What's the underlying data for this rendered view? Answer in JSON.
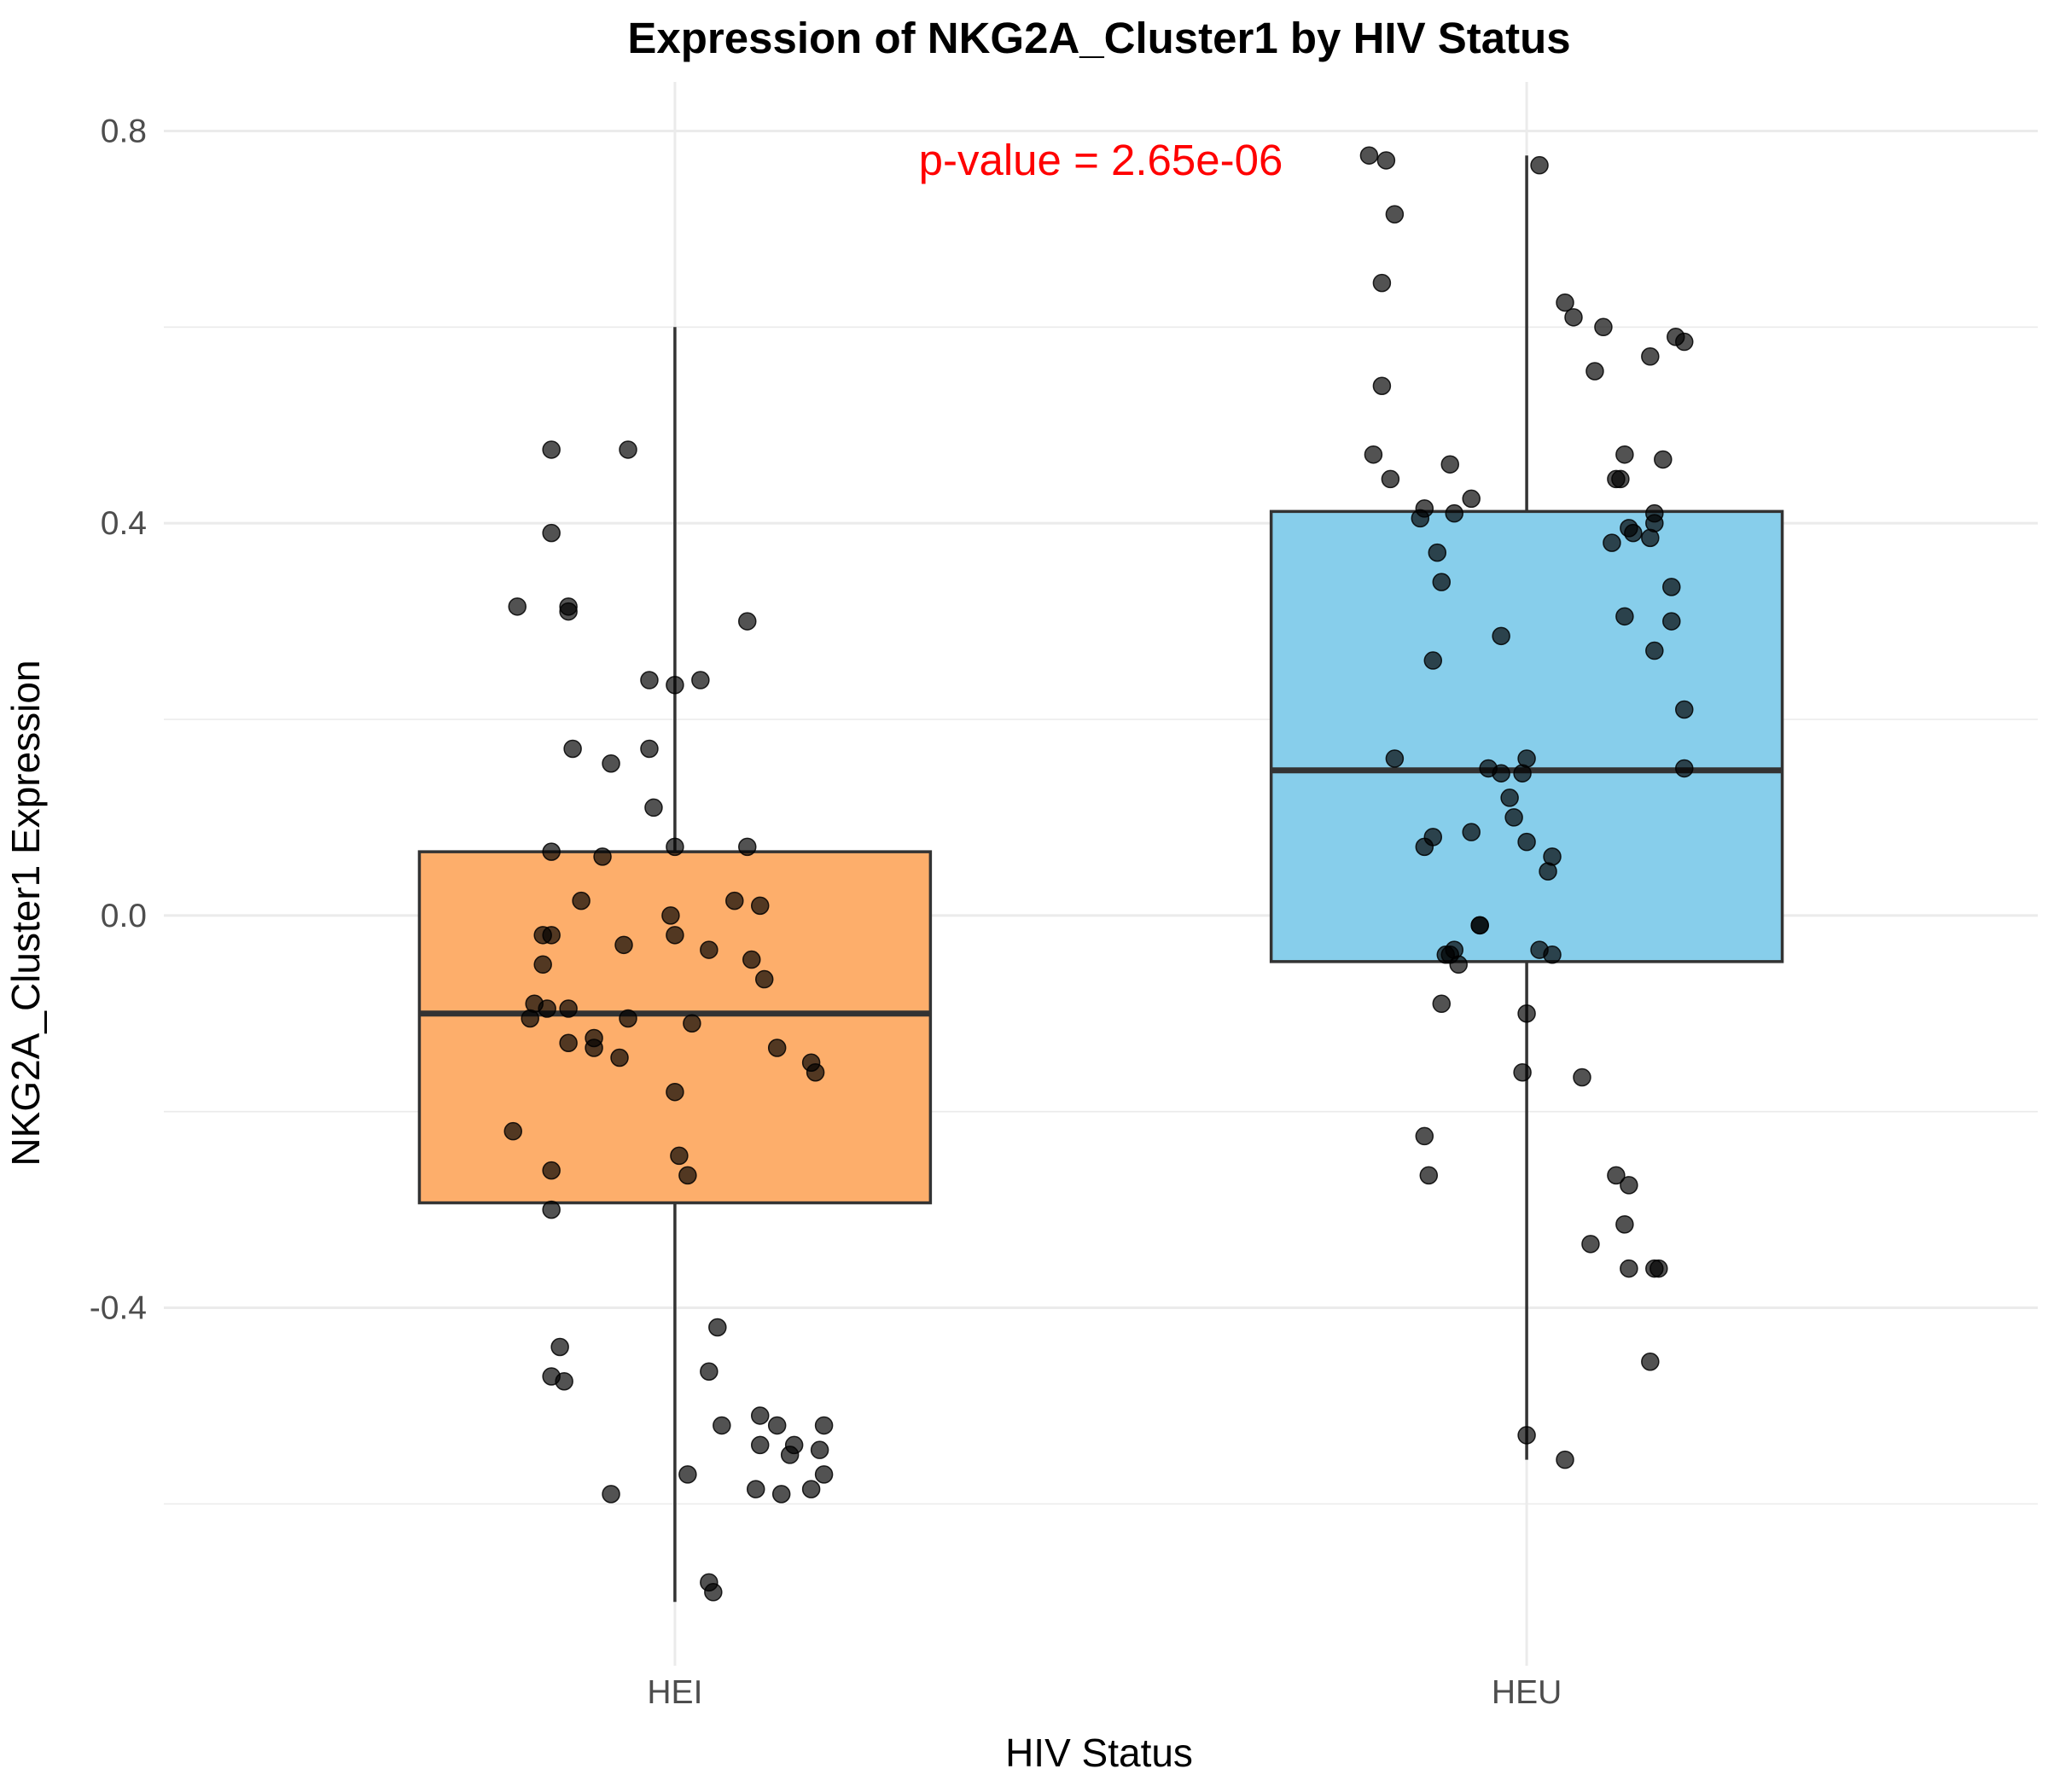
{
  "chart_data": {
    "type": "box",
    "title": "Expression of NKG2A_Cluster1 by HIV Status",
    "xlabel": "HIV Status",
    "ylabel": "NKG2A_Cluster1 Expression",
    "categories": [
      "HEI",
      "HEU"
    ],
    "ylim": [
      -0.765,
      0.85
    ],
    "yticks": [
      0.8,
      0.4,
      0.0,
      -0.4
    ],
    "ytick_labels": [
      "0.8",
      "0.4",
      "0.0",
      "-0.4"
    ],
    "grid": true,
    "legend": "none",
    "annotation": {
      "text": "p-value = 2.65e-06",
      "color": "#ff0000",
      "x": 1.5,
      "y": 0.77
    },
    "boxes": [
      {
        "category": "HEI",
        "color": "#fdae6b",
        "whisker_low": -0.7,
        "q1": -0.293,
        "median": -0.1,
        "q3": 0.065,
        "whisker_high": 0.6
      },
      {
        "category": "HEU",
        "color": "#87ceeb",
        "whisker_low": -0.555,
        "q1": -0.047,
        "median": 0.148,
        "q3": 0.412,
        "whisker_high": 0.775
      }
    ],
    "points": [
      {
        "category": "HEI",
        "jitter": [
          -0.145,
          -0.145,
          -0.125,
          -0.185,
          -0.125,
          -0.12,
          -0.145,
          -0.03,
          -0.145,
          0.085,
          -0.155,
          -0.155,
          -0.17,
          -0.165,
          -0.15,
          -0.085,
          -0.11,
          -0.06,
          -0.095,
          -0.125,
          -0.125,
          -0.095,
          -0.065,
          -0.055,
          -0.03,
          -0.025,
          0.0,
          -0.005,
          0.0,
          0.02,
          0.015,
          0.04,
          0.085,
          0.1,
          0.09,
          0.105,
          0.07,
          0.12,
          0.16,
          0.165,
          -0.19,
          -0.145,
          0.0,
          0.005,
          -0.075,
          -0.055,
          0.0,
          0.03,
          -0.145,
          -0.135,
          0.1,
          0.12,
          0.14,
          0.04,
          0.015,
          0.055,
          0.175,
          0.135,
          0.16,
          0.175,
          -0.13,
          -0.145,
          0.1,
          0.125,
          0.095,
          0.05,
          0.17,
          -0.075,
          0.04,
          0.045
        ],
        "y": [
          0.475,
          0.39,
          0.315,
          0.315,
          0.31,
          0.17,
          0.065,
          0.17,
          -0.02,
          0.3,
          -0.02,
          -0.05,
          -0.105,
          -0.09,
          -0.095,
          0.06,
          0.015,
          -0.03,
          -0.135,
          -0.13,
          -0.095,
          -0.125,
          -0.145,
          -0.105,
          0.24,
          0.11,
          0.07,
          0.0,
          -0.02,
          -0.11,
          -0.265,
          -0.035,
          0.07,
          0.01,
          -0.045,
          -0.065,
          0.015,
          -0.135,
          -0.15,
          -0.16,
          -0.22,
          -0.26,
          -0.18,
          -0.245,
          0.155,
          0.475,
          0.235,
          0.24,
          -0.3,
          -0.44,
          -0.54,
          -0.52,
          -0.54,
          -0.465,
          -0.57,
          -0.52,
          -0.52,
          -0.55,
          -0.585,
          -0.57,
          -0.475,
          -0.47,
          -0.51,
          -0.59,
          -0.585,
          -0.42,
          -0.545,
          -0.59,
          -0.68,
          -0.69
        ]
      },
      {
        "category": "HEU",
        "jitter": [
          -0.165,
          -0.17,
          -0.17,
          -0.18,
          -0.16,
          -0.12,
          -0.125,
          -0.105,
          -0.09,
          -0.065,
          -0.085,
          -0.1,
          -0.03,
          -0.11,
          -0.155,
          -0.11,
          -0.12,
          -0.09,
          -0.055,
          -0.065,
          -0.03,
          -0.045,
          -0.02,
          -0.015,
          0.0,
          -0.005,
          0.0,
          0.03,
          0.025,
          0.015,
          0.03,
          0.015,
          0.045,
          0.055,
          0.08,
          0.09,
          0.105,
          0.115,
          0.12,
          0.1,
          0.125,
          0.115,
          0.15,
          0.17,
          0.185,
          0.175,
          0.145,
          0.16,
          0.11,
          0.15,
          0.15,
          0.145,
          0.17,
          0.185,
          0.185,
          -0.185,
          -0.155,
          -0.115,
          -0.12,
          -0.1,
          -0.095,
          -0.085,
          -0.055,
          -0.08,
          0.0,
          -0.005,
          0.065,
          0.075,
          0.12,
          0.115,
          0.15,
          0.155,
          0.105,
          0.12,
          0.145,
          0.0,
          0.045
        ],
        "y": [
          0.77,
          0.645,
          0.54,
          0.47,
          0.445,
          0.415,
          0.405,
          0.37,
          0.46,
          0.425,
          0.41,
          0.34,
          0.285,
          0.26,
          0.16,
          0.08,
          0.07,
          -0.04,
          -0.01,
          0.085,
          0.145,
          0.15,
          0.12,
          0.1,
          0.16,
          0.145,
          0.075,
          0.06,
          0.045,
          -0.035,
          -0.04,
          0.765,
          0.625,
          0.61,
          0.555,
          0.6,
          0.445,
          0.47,
          0.395,
          0.38,
          0.39,
          0.305,
          0.27,
          0.335,
          0.585,
          0.59,
          0.57,
          0.465,
          0.445,
          0.4,
          0.41,
          0.385,
          0.3,
          0.21,
          0.15,
          0.775,
          0.715,
          -0.265,
          -0.225,
          -0.09,
          -0.04,
          -0.035,
          -0.01,
          -0.05,
          -0.1,
          -0.16,
          -0.165,
          -0.335,
          -0.36,
          -0.315,
          -0.36,
          -0.36,
          -0.265,
          -0.275,
          -0.455,
          -0.53,
          -0.555
        ]
      }
    ]
  }
}
